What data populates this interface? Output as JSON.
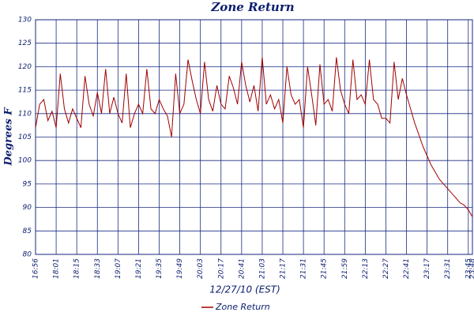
{
  "chart_data": {
    "type": "line",
    "title": "Zone Return",
    "xlabel": "12/27/10 (EST)",
    "ylabel": "Degrees F",
    "categories": [
      "16:56",
      null,
      null,
      null,
      null,
      "18:01",
      null,
      null,
      null,
      null,
      "18:15",
      null,
      null,
      null,
      null,
      "18:33",
      null,
      null,
      null,
      null,
      "19:07",
      null,
      null,
      null,
      null,
      "19:21",
      null,
      null,
      null,
      null,
      "19:35",
      null,
      null,
      null,
      null,
      "19:49",
      null,
      null,
      null,
      null,
      "20:03",
      null,
      null,
      null,
      null,
      "20:17",
      null,
      null,
      null,
      null,
      "20:41",
      null,
      null,
      null,
      null,
      "21:03",
      null,
      null,
      null,
      null,
      "21:17",
      null,
      null,
      null,
      null,
      "21:31",
      null,
      null,
      null,
      null,
      "21:45",
      null,
      null,
      null,
      null,
      "21:59",
      null,
      null,
      null,
      null,
      "22:13",
      null,
      null,
      null,
      null,
      "22:27",
      null,
      null,
      null,
      null,
      "22:41",
      null,
      null,
      null,
      null,
      "23:17",
      null,
      null,
      null,
      null,
      "23:31",
      null,
      null,
      null,
      null,
      "23:45",
      "23:48"
    ],
    "series": [
      {
        "name": "Zone Return",
        "color": "#a00000",
        "values": [
          107,
          112,
          113,
          108.5,
          110.5,
          107,
          118.5,
          111,
          108,
          111,
          109,
          107,
          118,
          112,
          109.5,
          114.5,
          110,
          119.5,
          110,
          113.5,
          110,
          108,
          118.5,
          107,
          110,
          112,
          110,
          119.5,
          111,
          110,
          113,
          111,
          109.5,
          105,
          118.5,
          110,
          112,
          121.5,
          117,
          113,
          110,
          121,
          113,
          110.5,
          116,
          112,
          111,
          118,
          115.5,
          112,
          121,
          116,
          112.5,
          116,
          110.5,
          122,
          112,
          114,
          111,
          113,
          108,
          120,
          114,
          112,
          113,
          107,
          120,
          114,
          107.5,
          120.5,
          112,
          113,
          110.5,
          122,
          115,
          112,
          110,
          121.5,
          113,
          114,
          112,
          121.5,
          113,
          112,
          109,
          109,
          108,
          121,
          113,
          117.5,
          114,
          111,
          108,
          105.5,
          103,
          101,
          99,
          97.5,
          96,
          95,
          94,
          93,
          92,
          91,
          90.5,
          89.5,
          88
        ]
      }
    ],
    "ylim": [
      80,
      130
    ],
    "yticks": [
      80,
      85,
      90,
      95,
      100,
      105,
      110,
      115,
      120,
      125,
      130
    ],
    "grid": true,
    "legend": "bottom"
  }
}
